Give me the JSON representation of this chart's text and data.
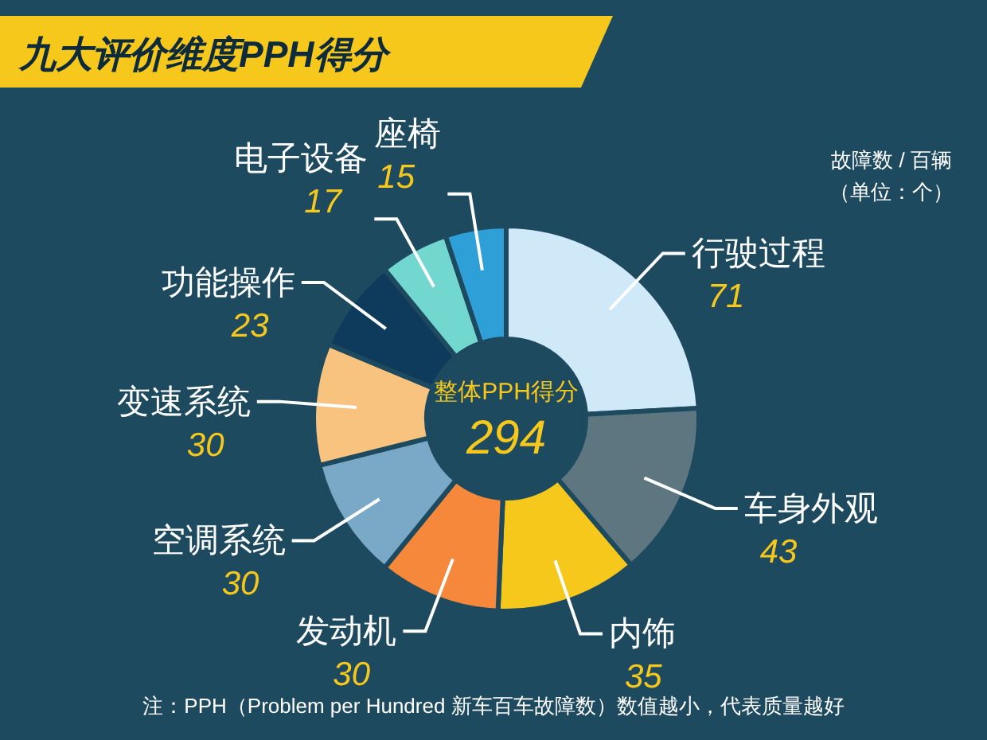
{
  "chart_data": {
    "type": "donut",
    "title": "九大评价维度PPH得分",
    "categories": [
      "行驶过程",
      "车身外观",
      "内饰",
      "发动机",
      "空调系统",
      "变速系统",
      "功能操作",
      "电子设备",
      "座椅"
    ],
    "values": [
      71,
      43,
      35,
      30,
      30,
      30,
      23,
      17,
      15
    ],
    "colors": [
      "#cfe9f8",
      "#5e7680",
      "#f6c81c",
      "#f5883a",
      "#79a9c6",
      "#f8c27f",
      "#0e3a5c",
      "#72d8cf",
      "#2f9fd8"
    ],
    "data_labels": true,
    "annotations": [
      "整体PPH得分",
      "294",
      "故障数 / 百辆",
      "（单位：个）",
      "注：PPH（Problem per Hundred 新车百车故障数）数值越小，代表质量越好"
    ]
  }
}
